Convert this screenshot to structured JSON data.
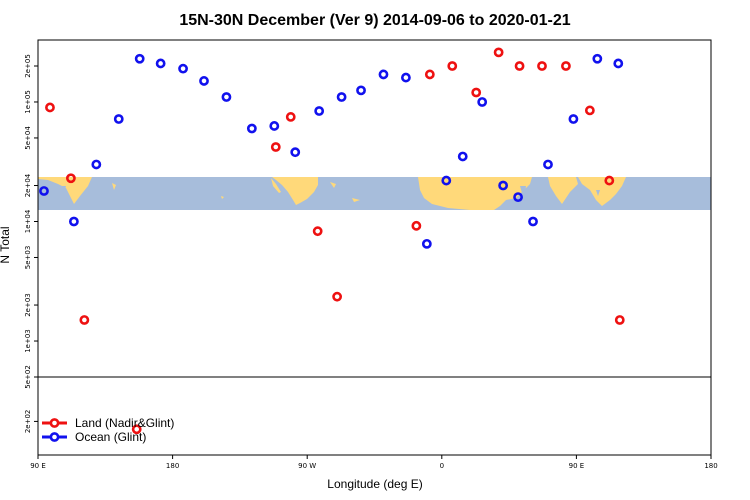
{
  "colors": {
    "land": "#ee1111",
    "ocean": "#1111ee",
    "map_ocean": "#a7bddb",
    "map_land": "#ffd97a"
  },
  "chart_data": {
    "type": "scatter",
    "title": "15N-30N December (Ver 9)   2014-09-06 to 2020-01-21",
    "xlabel": "Longitude (deg E)",
    "ylabel": "N Total",
    "x_ticks": [
      {
        "value": 90,
        "label": "90 E"
      },
      {
        "value": 180,
        "label": "180"
      },
      {
        "value": 270,
        "label": "90 W"
      },
      {
        "value": 360,
        "label": "0"
      },
      {
        "value": 450,
        "label": "90 E"
      },
      {
        "value": 540,
        "label": "180"
      }
    ],
    "y_ticks_upper": [
      {
        "value": 200000,
        "label": "2e+05"
      },
      {
        "value": 100000,
        "label": "1e+05"
      },
      {
        "value": 50000,
        "label": "5e+04"
      },
      {
        "value": 20000,
        "label": "2e+04"
      },
      {
        "value": 10000,
        "label": "1e+04"
      },
      {
        "value": 5000,
        "label": "5e+03"
      },
      {
        "value": 2000,
        "label": "2e+03"
      },
      {
        "value": 1000,
        "label": "1e+03"
      },
      {
        "value": 500,
        "label": "5e+02"
      }
    ],
    "y_ticks_lower": [
      {
        "value": 200,
        "label": "2e+02"
      }
    ],
    "xlim": [
      90,
      540
    ],
    "ylim_upper": [
      500,
      330000
    ],
    "ylim_lower": [
      100,
      500
    ],
    "log_scale_y": true,
    "legend_position": "bottom-left",
    "series": [
      {
        "name": "Land (Nadir&Glint)",
        "color": "#ee1111",
        "points": [
          [
            98,
            90000
          ],
          [
            112,
            23000
          ],
          [
            121,
            1500
          ],
          [
            156,
            170
          ],
          [
            249,
            42000
          ],
          [
            259,
            75000
          ],
          [
            277,
            8300
          ],
          [
            290,
            2350
          ],
          [
            343,
            9200
          ],
          [
            352,
            170000
          ],
          [
            367,
            200000
          ],
          [
            383,
            120000
          ],
          [
            398,
            260000
          ],
          [
            412,
            200000
          ],
          [
            427,
            200000
          ],
          [
            443,
            200000
          ],
          [
            459,
            85000
          ],
          [
            472,
            22000
          ],
          [
            479,
            1500
          ]
        ]
      },
      {
        "name": "Ocean (Glint)",
        "color": "#1111ee",
        "points": [
          [
            94,
            18000
          ],
          [
            114,
            10000
          ],
          [
            129,
            30000
          ],
          [
            144,
            72000
          ],
          [
            158,
            230000
          ],
          [
            172,
            210000
          ],
          [
            187,
            190000
          ],
          [
            201,
            150000
          ],
          [
            216,
            110000
          ],
          [
            233,
            60000
          ],
          [
            248,
            63000
          ],
          [
            262,
            38000
          ],
          [
            278,
            84000
          ],
          [
            293,
            110000
          ],
          [
            306,
            125000
          ],
          [
            321,
            170000
          ],
          [
            336,
            160000
          ],
          [
            350,
            6500
          ],
          [
            363,
            22000
          ],
          [
            374,
            35000
          ],
          [
            387,
            100000
          ],
          [
            401,
            20000
          ],
          [
            411,
            16000
          ],
          [
            421,
            10000
          ],
          [
            431,
            30000
          ],
          [
            448,
            72000
          ],
          [
            464,
            230000
          ],
          [
            478,
            210000
          ]
        ]
      }
    ]
  }
}
